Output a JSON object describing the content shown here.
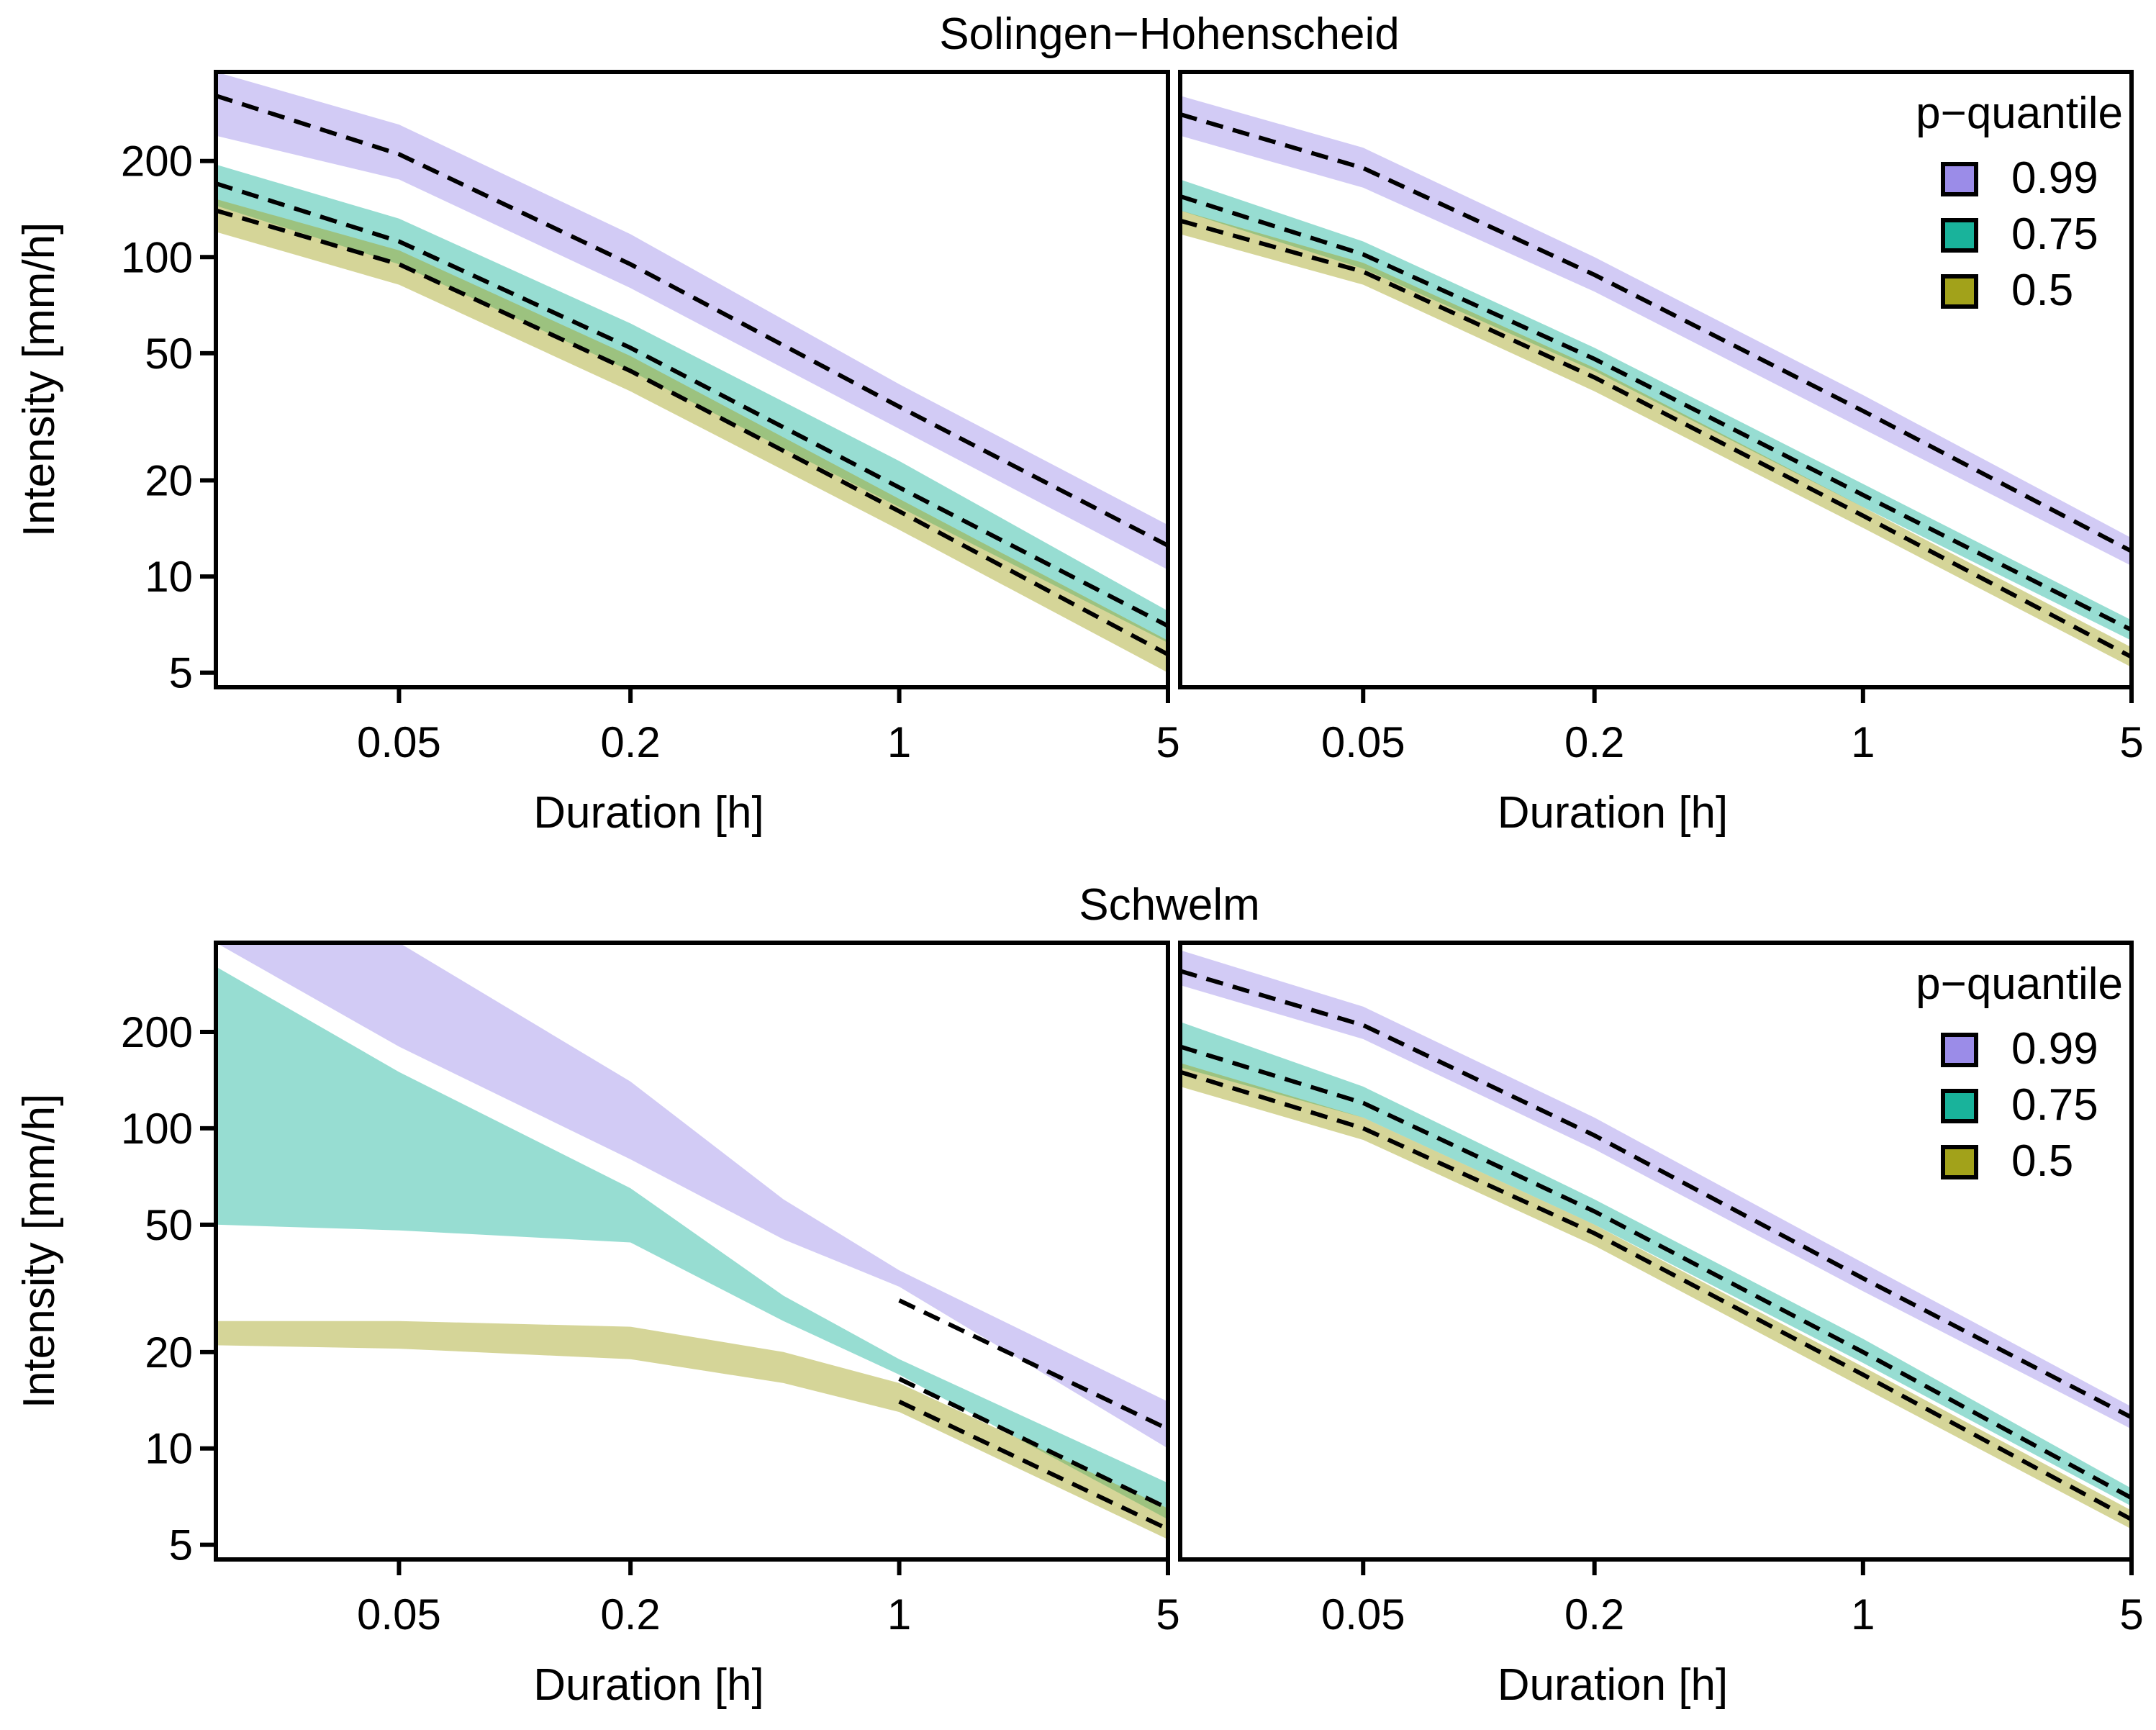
{
  "colors": {
    "q099": "#9b8ce8",
    "q075": "#19b39b",
    "q05": "#a2a21a"
  },
  "chart_data": [
    {
      "type": "area",
      "station": "Solingen-Hohenscheid",
      "row_title": "Solingen−Hohenscheid",
      "xscale": "log",
      "yscale": "log",
      "xlim": [
        0.0167,
        5
      ],
      "ylim": [
        4.5,
        380
      ],
      "xlabel": "Duration [h]",
      "ylabel": "Intensity [mm/h]",
      "xticks": [
        "0.05",
        "0.2",
        "1",
        "5"
      ],
      "yticks": [
        "5",
        "10",
        "20",
        "50",
        "100",
        "200"
      ],
      "legend": null,
      "x": [
        0.0167,
        0.05,
        0.2,
        1,
        5
      ],
      "series": [
        {
          "name": "0.99",
          "color": "q099",
          "median": [
            320,
            210,
            95,
            34,
            12.5
          ],
          "lower": [
            240,
            175,
            80,
            29,
            10.5
          ],
          "upper": [
            380,
            260,
            118,
            40,
            14.5
          ]
        },
        {
          "name": "0.75",
          "color": "q075",
          "median": [
            170,
            112,
            52,
            19,
            7
          ],
          "lower": [
            145,
            95,
            44,
            16.5,
            6.2
          ],
          "upper": [
            195,
            132,
            62,
            23,
            7.8
          ]
        },
        {
          "name": "0.5",
          "color": "q05",
          "median": [
            140,
            95,
            44,
            16,
            5.7
          ],
          "lower": [
            120,
            82,
            38,
            14,
            5
          ],
          "upper": [
            152,
            105,
            49,
            17.5,
            6.3
          ]
        }
      ]
    },
    {
      "type": "area",
      "station": "Solingen-Hohenscheid",
      "xscale": "log",
      "yscale": "log",
      "xlim": [
        0.0167,
        5
      ],
      "ylim": [
        4.5,
        380
      ],
      "xlabel": "Duration [h]",
      "ylabel": "",
      "xticks": [
        "0.05",
        "0.2",
        "1",
        "5"
      ],
      "yticks": [],
      "legend": {
        "title": "p−quantile",
        "position": "top-right",
        "entries": [
          "0.99",
          "0.75",
          "0.5"
        ]
      },
      "x": [
        0.0167,
        0.05,
        0.2,
        1,
        5
      ],
      "series": [
        {
          "name": "0.99",
          "color": "q099",
          "median": [
            280,
            190,
            88,
            33,
            12
          ],
          "lower": [
            240,
            165,
            78,
            29,
            10.8
          ],
          "upper": [
            320,
            220,
            100,
            37,
            13.2
          ]
        },
        {
          "name": "0.75",
          "color": "q075",
          "median": [
            155,
            102,
            48,
            18,
            6.8
          ],
          "lower": [
            140,
            92,
            44,
            16.5,
            6.3
          ],
          "upper": [
            175,
            112,
            52,
            19.5,
            7.3
          ]
        },
        {
          "name": "0.5",
          "color": "q05",
          "median": [
            130,
            90,
            42,
            15.5,
            5.6
          ],
          "lower": [
            118,
            82,
            38,
            14.2,
            5.2
          ],
          "upper": [
            140,
            96,
            45,
            16.5,
            6
          ]
        }
      ]
    },
    {
      "type": "area",
      "station": "Schwelm",
      "row_title": "Schwelm",
      "xscale": "log",
      "yscale": "log",
      "xlim": [
        0.0167,
        5
      ],
      "ylim": [
        4.5,
        380
      ],
      "xlabel": "Duration [h]",
      "ylabel": "Intensity [mm/h]",
      "xticks": [
        "0.05",
        "0.2",
        "1",
        "5"
      ],
      "yticks": [
        "5",
        "10",
        "20",
        "50",
        "100",
        "200"
      ],
      "legend": null,
      "x": [
        0.0167,
        0.05,
        0.2,
        0.5,
        1,
        5
      ],
      "median_from": 1,
      "series": [
        {
          "name": "0.99",
          "color": "q099",
          "median": [
            null,
            null,
            null,
            null,
            29,
            11.5
          ],
          "lower": [
            380,
            180,
            80,
            45,
            32,
            10
          ],
          "upper": [
            380,
            380,
            140,
            60,
            36,
            14
          ]
        },
        {
          "name": "0.75",
          "color": "q075",
          "median": [
            null,
            null,
            null,
            null,
            16.5,
            6.5
          ],
          "lower": [
            50,
            48,
            44,
            25,
            17,
            6
          ],
          "upper": [
            320,
            150,
            65,
            30,
            19,
            7.8
          ]
        },
        {
          "name": "0.5",
          "color": "q05",
          "median": [
            null,
            null,
            null,
            null,
            14,
            5.6
          ],
          "lower": [
            21,
            20.5,
            19,
            16,
            13,
            5.2
          ],
          "upper": [
            25,
            25,
            24,
            20,
            16,
            6.5
          ]
        }
      ]
    },
    {
      "type": "area",
      "station": "Schwelm",
      "xscale": "log",
      "yscale": "log",
      "xlim": [
        0.0167,
        5
      ],
      "ylim": [
        4.5,
        380
      ],
      "xlabel": "Duration [h]",
      "ylabel": "",
      "xticks": [
        "0.05",
        "0.2",
        "1",
        "5"
      ],
      "yticks": [],
      "legend": {
        "title": "p−quantile",
        "position": "top-right",
        "entries": [
          "0.99",
          "0.75",
          "0.5"
        ]
      },
      "x": [
        0.0167,
        0.05,
        0.2,
        1,
        5
      ],
      "series": [
        {
          "name": "0.99",
          "color": "q099",
          "median": [
            310,
            210,
            95,
            34,
            12.5
          ],
          "lower": [
            280,
            190,
            86,
            31,
            11.5
          ],
          "upper": [
            360,
            240,
            108,
            38,
            13.5
          ]
        },
        {
          "name": "0.75",
          "color": "q075",
          "median": [
            180,
            120,
            55,
            20,
            7
          ],
          "lower": [
            155,
            108,
            50,
            18.5,
            6.6
          ],
          "upper": [
            215,
            135,
            60,
            22,
            7.5
          ]
        },
        {
          "name": "0.5",
          "color": "q05",
          "median": [
            150,
            100,
            47,
            17,
            6
          ],
          "lower": [
            135,
            92,
            43,
            15.5,
            5.6
          ],
          "upper": [
            160,
            108,
            50,
            18,
            6.4
          ]
        }
      ]
    }
  ]
}
